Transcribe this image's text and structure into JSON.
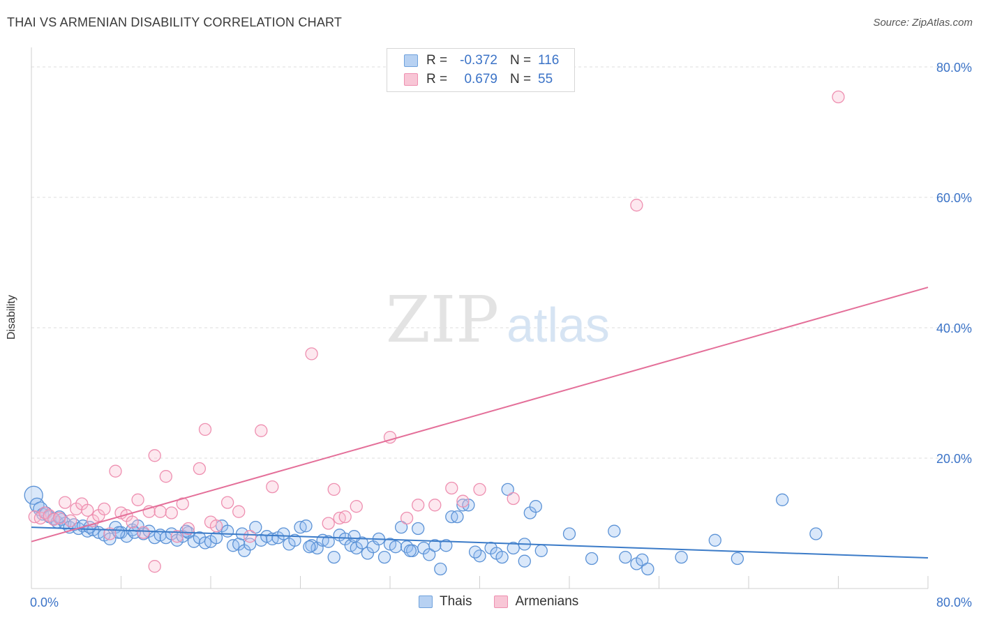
{
  "header": {
    "title": "THAI VS ARMENIAN DISABILITY CORRELATION CHART",
    "source": "Source: ZipAtlas.com"
  },
  "watermark": {
    "zip": "ZIP",
    "atlas": "atlas"
  },
  "legend": {
    "rows": [
      {
        "r_label": "R =",
        "r_value": "-0.372",
        "n_label": "N =",
        "n_value": "116",
        "color": "#6fa1dc",
        "fill": "#b7d1f2"
      },
      {
        "r_label": "R =",
        "r_value": "0.679",
        "n_label": "N =",
        "n_value": "55",
        "color": "#ee8fb0",
        "fill": "#f8c6d6"
      }
    ]
  },
  "bottom_legend": [
    "Thais",
    "Armenians"
  ],
  "colors": {
    "thais_stroke": "#5b92d6",
    "thais_fill": "rgba(150,190,240,0.35)",
    "thais_line": "#3b7bc8",
    "armenians_stroke": "#ee8fb0",
    "armenians_fill": "rgba(248,190,210,0.35)",
    "armenians_line": "#e46f99",
    "axis_label": "#3b73c7",
    "grid": "#dddddd"
  },
  "chart_data": {
    "type": "scatter",
    "title": "THAI VS ARMENIAN DISABILITY CORRELATION CHART",
    "xlabel": "",
    "ylabel": "Disability",
    "xlim": [
      0,
      80
    ],
    "ylim": [
      0,
      80
    ],
    "x_tick_labels": [
      "0.0%",
      "80.0%"
    ],
    "y_tick_labels": [
      "20.0%",
      "40.0%",
      "60.0%",
      "80.0%"
    ],
    "y_ticks": [
      20,
      40,
      60,
      80
    ],
    "grid": true,
    "legend_position": "top-center",
    "series": [
      {
        "name": "Thais",
        "r": -0.372,
        "n": 116,
        "trend": {
          "x": [
            0,
            80
          ],
          "y": [
            9.4,
            4.7
          ]
        },
        "points": [
          [
            0.2,
            14.3
          ],
          [
            0.5,
            12.8
          ],
          [
            0.8,
            12.2
          ],
          [
            1.0,
            11.4
          ],
          [
            1.3,
            11.6
          ],
          [
            1.6,
            11.0
          ],
          [
            2.0,
            10.7
          ],
          [
            2.3,
            10.2
          ],
          [
            2.7,
            10.6
          ],
          [
            3.0,
            10.0
          ],
          [
            3.4,
            9.4
          ],
          [
            3.8,
            9.8
          ],
          [
            4.2,
            9.2
          ],
          [
            4.6,
            9.6
          ],
          [
            5.0,
            8.8
          ],
          [
            5.5,
            9.0
          ],
          [
            6.0,
            8.6
          ],
          [
            6.5,
            8.2
          ],
          [
            7.0,
            7.6
          ],
          [
            7.5,
            9.4
          ],
          [
            8.0,
            8.6
          ],
          [
            8.5,
            8.0
          ],
          [
            9.0,
            9.0
          ],
          [
            9.5,
            9.6
          ],
          [
            10.0,
            8.4
          ],
          [
            10.5,
            8.8
          ],
          [
            11.0,
            7.8
          ],
          [
            11.5,
            8.2
          ],
          [
            12.0,
            7.8
          ],
          [
            12.5,
            8.4
          ],
          [
            13.0,
            7.4
          ],
          [
            13.5,
            8.0
          ],
          [
            14.0,
            8.6
          ],
          [
            14.5,
            7.2
          ],
          [
            15.0,
            7.8
          ],
          [
            15.5,
            7.0
          ],
          [
            16.0,
            7.2
          ],
          [
            16.5,
            7.8
          ],
          [
            17.0,
            9.6
          ],
          [
            17.5,
            8.8
          ],
          [
            18.0,
            6.6
          ],
          [
            18.5,
            6.8
          ],
          [
            19.0,
            5.8
          ],
          [
            19.5,
            6.8
          ],
          [
            20.0,
            9.4
          ],
          [
            20.5,
            7.4
          ],
          [
            21.0,
            8.0
          ],
          [
            21.5,
            7.6
          ],
          [
            22.0,
            7.8
          ],
          [
            22.5,
            8.4
          ],
          [
            23.0,
            6.8
          ],
          [
            23.5,
            7.4
          ],
          [
            24.0,
            9.4
          ],
          [
            24.5,
            9.6
          ],
          [
            25.0,
            6.6
          ],
          [
            25.5,
            6.2
          ],
          [
            26.0,
            7.4
          ],
          [
            26.5,
            7.2
          ],
          [
            27.0,
            4.8
          ],
          [
            27.5,
            8.2
          ],
          [
            28.0,
            7.6
          ],
          [
            28.5,
            6.6
          ],
          [
            29.0,
            6.2
          ],
          [
            29.5,
            7.0
          ],
          [
            30.0,
            5.4
          ],
          [
            30.5,
            6.4
          ],
          [
            31.0,
            7.6
          ],
          [
            31.5,
            4.8
          ],
          [
            32.0,
            6.8
          ],
          [
            32.5,
            6.4
          ],
          [
            33.0,
            9.4
          ],
          [
            33.5,
            6.4
          ],
          [
            34.0,
            5.8
          ],
          [
            34.5,
            9.2
          ],
          [
            35.0,
            6.2
          ],
          [
            35.5,
            5.2
          ],
          [
            36.0,
            6.6
          ],
          [
            36.5,
            3.0
          ],
          [
            37.0,
            6.6
          ],
          [
            37.5,
            11.0
          ],
          [
            38.0,
            11.0
          ],
          [
            38.5,
            12.8
          ],
          [
            39.0,
            12.8
          ],
          [
            40.0,
            5.0
          ],
          [
            41.0,
            6.2
          ],
          [
            41.5,
            5.4
          ],
          [
            42.0,
            4.8
          ],
          [
            42.5,
            15.2
          ],
          [
            43.0,
            6.2
          ],
          [
            44.0,
            6.8
          ],
          [
            44.5,
            11.6
          ],
          [
            45.0,
            12.6
          ],
          [
            45.5,
            5.8
          ],
          [
            48.0,
            8.4
          ],
          [
            50.0,
            4.6
          ],
          [
            52.0,
            8.8
          ],
          [
            53.0,
            4.8
          ],
          [
            54.0,
            3.8
          ],
          [
            54.5,
            4.4
          ],
          [
            55.0,
            3.0
          ],
          [
            58.0,
            4.8
          ],
          [
            61.0,
            7.4
          ],
          [
            63.0,
            4.6
          ],
          [
            67.0,
            13.6
          ],
          [
            70.0,
            8.4
          ],
          [
            5.2,
            9.4
          ],
          [
            9.2,
            8.6
          ],
          [
            13.8,
            8.8
          ],
          [
            18.8,
            8.4
          ],
          [
            24.8,
            6.4
          ],
          [
            28.8,
            8.0
          ],
          [
            33.8,
            5.8
          ],
          [
            39.6,
            5.6
          ],
          [
            44.0,
            4.2
          ],
          [
            2.5,
            11.0
          ],
          [
            7.8,
            8.6
          ]
        ]
      },
      {
        "name": "Armenians",
        "r": 0.679,
        "n": 55,
        "trend": {
          "x": [
            0,
            80
          ],
          "y": [
            7.2,
            46.2
          ]
        },
        "points": [
          [
            0.3,
            11.0
          ],
          [
            0.8,
            10.8
          ],
          [
            1.2,
            11.6
          ],
          [
            1.6,
            11.2
          ],
          [
            2.0,
            10.6
          ],
          [
            2.5,
            10.8
          ],
          [
            3.0,
            13.2
          ],
          [
            3.5,
            10.4
          ],
          [
            4.0,
            12.2
          ],
          [
            4.5,
            13.0
          ],
          [
            5.0,
            12.0
          ],
          [
            5.5,
            10.4
          ],
          [
            6.0,
            11.2
          ],
          [
            6.5,
            12.2
          ],
          [
            7.0,
            8.4
          ],
          [
            7.5,
            18.0
          ],
          [
            8.0,
            11.6
          ],
          [
            8.5,
            11.2
          ],
          [
            9.0,
            10.2
          ],
          [
            9.5,
            13.6
          ],
          [
            10.0,
            8.6
          ],
          [
            10.5,
            11.8
          ],
          [
            11.0,
            20.4
          ],
          [
            11.5,
            11.8
          ],
          [
            12.0,
            17.2
          ],
          [
            12.5,
            11.6
          ],
          [
            13.0,
            8.0
          ],
          [
            13.5,
            13.0
          ],
          [
            14.0,
            9.2
          ],
          [
            15.0,
            18.4
          ],
          [
            15.5,
            24.4
          ],
          [
            16.0,
            10.2
          ],
          [
            16.5,
            9.6
          ],
          [
            17.5,
            13.2
          ],
          [
            18.5,
            11.8
          ],
          [
            19.5,
            8.0
          ],
          [
            20.5,
            24.2
          ],
          [
            21.5,
            15.6
          ],
          [
            25.0,
            36.0
          ],
          [
            26.5,
            10.0
          ],
          [
            27.0,
            15.2
          ],
          [
            27.5,
            10.8
          ],
          [
            28.0,
            11.0
          ],
          [
            29.0,
            12.6
          ],
          [
            32.0,
            23.2
          ],
          [
            33.5,
            10.8
          ],
          [
            34.5,
            12.8
          ],
          [
            36.0,
            12.8
          ],
          [
            37.5,
            15.4
          ],
          [
            38.5,
            13.4
          ],
          [
            40.0,
            15.2
          ],
          [
            43.0,
            13.8
          ],
          [
            54.0,
            58.8
          ],
          [
            72.0,
            75.4
          ],
          [
            11.0,
            3.4
          ]
        ]
      }
    ]
  }
}
